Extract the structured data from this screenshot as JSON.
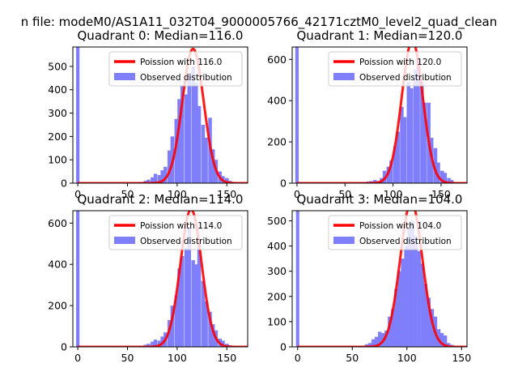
{
  "figure_title": "n file: modeM0/AS1A11_032T04_9000005766_42171cztM0_level2_quad_clean",
  "colors": {
    "poisson": "#ff0000",
    "hist": "#7f7ffb",
    "axis": "#000000"
  },
  "chart_data": [
    {
      "type": "bar",
      "title": "Quadrant 0: Median=116.0",
      "xlim": [
        -5,
        171
      ],
      "ylim": [
        0,
        583
      ],
      "xticks": [
        0,
        50,
        100,
        150
      ],
      "yticks": [
        0,
        100,
        200,
        300,
        400,
        500
      ],
      "legend": [
        "Poission with 116.0",
        "Observed distribution"
      ],
      "legend_position": "upper right",
      "median": 116.0,
      "bin_width": 3.4,
      "spike": {
        "x": 0,
        "value": 583
      },
      "hist_x": [
        61,
        65,
        68,
        71,
        75,
        78,
        82,
        85,
        88,
        92,
        95,
        99,
        102,
        105,
        109,
        112,
        116,
        119,
        122,
        126,
        129,
        133,
        136,
        139,
        143,
        146,
        150,
        153,
        156,
        160,
        163
      ],
      "hist_y": [
        3,
        5,
        10,
        15,
        25,
        40,
        35,
        55,
        70,
        140,
        200,
        275,
        360,
        420,
        380,
        470,
        500,
        430,
        330,
        250,
        195,
        280,
        145,
        100,
        50,
        30,
        22,
        10,
        5,
        3,
        2
      ]
    },
    {
      "type": "bar",
      "title": "Quadrant 1: Median=120.0",
      "xlim": [
        -5,
        177
      ],
      "ylim": [
        0,
        660
      ],
      "xticks": [
        0,
        50,
        100,
        150
      ],
      "yticks": [
        0,
        200,
        400,
        600
      ],
      "legend": [
        "Poission with 120.0",
        "Observed distribution"
      ],
      "legend_position": "upper right",
      "median": 120.0,
      "bin_width": 3.5,
      "spike": {
        "x": 0,
        "value": 660
      },
      "hist_x": [
        63,
        67,
        70,
        74,
        77,
        81,
        84,
        88,
        91,
        95,
        98,
        102,
        105,
        109,
        112,
        116,
        119,
        123,
        126,
        130,
        133,
        137,
        140,
        144,
        147,
        151,
        154,
        158,
        161,
        165,
        168
      ],
      "hist_y": [
        3,
        3,
        5,
        8,
        10,
        15,
        10,
        25,
        60,
        80,
        110,
        180,
        250,
        370,
        320,
        490,
        460,
        550,
        600,
        490,
        390,
        390,
        220,
        170,
        100,
        60,
        50,
        25,
        15,
        5,
        3
      ]
    },
    {
      "type": "bar",
      "title": "Quadrant 2: Median=114.0",
      "xlim": [
        -5,
        171
      ],
      "ylim": [
        0,
        660
      ],
      "xticks": [
        0,
        50,
        100,
        150
      ],
      "yticks": [
        0,
        200,
        400,
        600
      ],
      "legend": [
        "Poission with 114.0",
        "Observed distribution"
      ],
      "legend_position": "upper right",
      "median": 114.0,
      "bin_width": 3.4,
      "spike": {
        "x": 0,
        "value": 660
      },
      "hist_x": [
        61,
        65,
        68,
        71,
        75,
        78,
        82,
        85,
        88,
        92,
        95,
        99,
        102,
        105,
        109,
        112,
        116,
        119,
        122,
        126,
        129,
        133,
        136,
        139,
        143,
        146,
        150,
        153,
        156,
        160,
        163
      ],
      "hist_y": [
        3,
        5,
        10,
        15,
        25,
        35,
        30,
        50,
        70,
        130,
        200,
        250,
        380,
        440,
        480,
        580,
        420,
        400,
        500,
        320,
        220,
        170,
        110,
        80,
        40,
        30,
        15,
        8,
        5,
        3,
        2
      ]
    },
    {
      "type": "bar",
      "title": "Quadrant 3: Median=104.0",
      "xlim": [
        -5,
        155
      ],
      "ylim": [
        0,
        540
      ],
      "xticks": [
        0,
        50,
        100,
        150
      ],
      "yticks": [
        0,
        100,
        200,
        300,
        400,
        500
      ],
      "legend": [
        "Poission with 104.0",
        "Observed distribution"
      ],
      "legend_position": "upper right",
      "median": 104.0,
      "bin_width": 3.0,
      "spike": {
        "x": 0,
        "value": 540
      },
      "hist_x": [
        57,
        60,
        63,
        66,
        69,
        72,
        75,
        78,
        81,
        84,
        87,
        90,
        93,
        96,
        99,
        102,
        105,
        108,
        111,
        114,
        117,
        120,
        123,
        126,
        129,
        132,
        135,
        138,
        141,
        144,
        147
      ],
      "hist_y": [
        3,
        5,
        10,
        15,
        30,
        40,
        60,
        55,
        65,
        120,
        150,
        230,
        300,
        350,
        400,
        470,
        500,
        440,
        380,
        330,
        250,
        195,
        150,
        120,
        70,
        55,
        45,
        15,
        8,
        3,
        2
      ]
    }
  ]
}
